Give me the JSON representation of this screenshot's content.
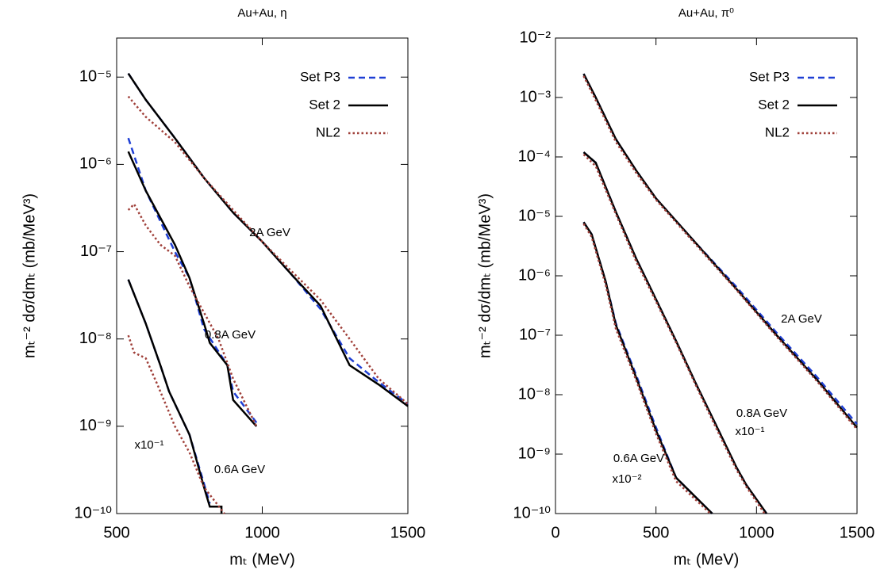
{
  "chart_data": [
    {
      "type": "line",
      "title": "Au+Au, η",
      "xlabel": "mₜ (MeV)",
      "ylabel": "mₜ⁻² dσ/dmₜ (mb/MeV³)",
      "log_y": true,
      "legend": "upper right",
      "xlim": [
        500,
        1500
      ],
      "xticks": [
        500,
        1000,
        1500
      ],
      "ylim": [
        1e-10,
        2.8e-05
      ],
      "yticks": [
        {
          "value": 1e-10,
          "label": "10⁻¹⁰"
        },
        {
          "value": 1e-09,
          "label": "10⁻⁹"
        },
        {
          "value": 1e-08,
          "label": "10⁻⁸"
        },
        {
          "value": 1e-07,
          "label": "10⁻⁷"
        },
        {
          "value": 1e-06,
          "label": "10⁻⁶"
        },
        {
          "value": 1e-05,
          "label": "10⁻⁵"
        }
      ],
      "annotations": [
        "2A GeV",
        "0.8A GeV",
        "x10⁻¹",
        "0.6A GeV"
      ],
      "series": [
        {
          "name": "Set P3",
          "color": "#1f3fd4",
          "style": "dashed",
          "lines": [
            {
              "x": [
                540,
                600,
                700,
                800,
                900,
                1000,
                1100,
                1200,
                1300,
                1400,
                1500
              ],
              "values": [
                1.1e-05,
                5.5e-06,
                2e-06,
                7e-07,
                2.8e-07,
                1.3e-07,
                5.5e-08,
                2.2e-08,
                6e-09,
                3.2e-09,
                1.8e-09
              ]
            },
            {
              "x": [
                540,
                600,
                700,
                750,
                800,
                880,
                900,
                980
              ],
              "values": [
                2e-06,
                5e-07,
                1e-07,
                5e-08,
                1.3e-08,
                5e-09,
                2.5e-09,
                1.1e-09
              ]
            },
            {
              "x": [
                540,
                600,
                650,
                680,
                750,
                800,
                820
              ],
              "values": [
                4.8e-08,
                1.5e-08,
                5e-09,
                2.5e-09,
                8e-10,
                2.2e-10,
                1.3e-10
              ]
            }
          ]
        },
        {
          "name": "Set 2",
          "color": "#000000",
          "style": "solid",
          "lines": [
            {
              "x": [
                540,
                600,
                700,
                800,
                900,
                1000,
                1100,
                1200,
                1300,
                1400,
                1500
              ],
              "values": [
                1.1e-05,
                5.5e-06,
                2e-06,
                7e-07,
                2.8e-07,
                1.3e-07,
                5.5e-08,
                2.4e-08,
                5e-09,
                3e-09,
                1.7e-09
              ]
            },
            {
              "x": [
                540,
                600,
                700,
                750,
                800,
                820,
                880,
                900,
                980
              ],
              "values": [
                1.4e-06,
                5e-07,
                1.2e-07,
                5e-08,
                1.5e-08,
                9e-09,
                5e-09,
                2e-09,
                1e-09
              ]
            },
            {
              "x": [
                540,
                600,
                650,
                680,
                750,
                800,
                820,
                860,
                860
              ],
              "values": [
                4.8e-08,
                1.5e-08,
                5e-09,
                2.5e-09,
                8e-10,
                2e-10,
                1.2e-10,
                1.2e-10,
                1e-10
              ]
            }
          ]
        },
        {
          "name": "NL2",
          "color": "#a0403a",
          "style": "dotted",
          "lines": [
            {
              "x": [
                540,
                600,
                700,
                800,
                900,
                1000,
                1100,
                1200,
                1300,
                1400,
                1500
              ],
              "values": [
                6e-06,
                3.5e-06,
                1.8e-06,
                7e-07,
                3e-07,
                1.3e-07,
                6e-08,
                2.8e-08,
                1e-08,
                3.5e-09,
                1.8e-09
              ]
            },
            {
              "x": [
                540,
                560,
                600,
                650,
                700,
                750,
                800,
                850,
                900,
                980
              ],
              "values": [
                3e-07,
                3.5e-07,
                2e-07,
                1.2e-07,
                9e-08,
                4e-08,
                2e-08,
                1e-08,
                3.5e-09,
                1e-09
              ]
            },
            {
              "x": [
                540,
                560,
                600,
                640,
                700,
                750,
                800,
                870
              ],
              "values": [
                1.1e-08,
                7e-09,
                6e-09,
                3e-09,
                1e-09,
                5e-10,
                2e-10,
                1e-10
              ]
            }
          ]
        }
      ]
    },
    {
      "type": "line",
      "title": "Au+Au, π⁰",
      "xlabel": "mₜ (MeV)",
      "ylabel": "mₜ⁻² dσ/dmₜ (mb/MeV³)",
      "log_y": true,
      "legend": "upper right",
      "xlim": [
        0,
        1500
      ],
      "xticks": [
        0,
        500,
        1000,
        1500
      ],
      "ylim": [
        1e-10,
        0.01
      ],
      "yticks": [
        {
          "value": 1e-10,
          "label": "10⁻¹⁰"
        },
        {
          "value": 1e-09,
          "label": "10⁻⁹"
        },
        {
          "value": 1e-08,
          "label": "10⁻⁸"
        },
        {
          "value": 1e-07,
          "label": "10⁻⁷"
        },
        {
          "value": 1e-06,
          "label": "10⁻⁶"
        },
        {
          "value": 1e-05,
          "label": "10⁻⁵"
        },
        {
          "value": 0.0001,
          "label": "10⁻⁴"
        },
        {
          "value": 0.001,
          "label": "10⁻³"
        },
        {
          "value": 0.01,
          "label": "10⁻²"
        }
      ],
      "annotations": [
        "2A GeV",
        "0.8A GeV",
        "x10⁻¹",
        "0.6A GeV",
        "x10⁻²"
      ],
      "series": [
        {
          "name": "Set P3",
          "color": "#1f3fd4",
          "style": "dashed",
          "lines": [
            {
              "x": [
                140,
                200,
                300,
                400,
                500,
                700,
                900,
                1100,
                1300,
                1500
              ],
              "values": [
                0.0025,
                0.001,
                0.0002,
                6e-05,
                2e-05,
                3.5e-06,
                6.5e-07,
                1.1e-07,
                2e-08,
                3.2e-09
              ]
            },
            {
              "x": [
                140,
                200,
                300,
                400,
                500,
                600,
                700,
                800,
                900,
                950,
                1050
              ],
              "values": [
                0.00012,
                8e-05,
                1.2e-05,
                2e-06,
                4e-07,
                8e-08,
                1.5e-08,
                3e-09,
                6e-10,
                3e-10,
                1e-10
              ]
            },
            {
              "x": [
                140,
                180,
                250,
                300,
                400,
                500,
                600,
                780
              ],
              "values": [
                8e-06,
                5e-06,
                8e-07,
                1.6e-07,
                2.2e-08,
                2.8e-09,
                4e-10,
                1e-10
              ]
            }
          ]
        },
        {
          "name": "Set 2",
          "color": "#000000",
          "style": "solid",
          "lines": [
            {
              "x": [
                140,
                200,
                300,
                400,
                500,
                700,
                900,
                1100,
                1300,
                1500
              ],
              "values": [
                0.0025,
                0.001,
                0.0002,
                6e-05,
                2e-05,
                3.5e-06,
                6e-07,
                1e-07,
                1.8e-08,
                2.8e-09
              ]
            },
            {
              "x": [
                140,
                200,
                300,
                400,
                500,
                600,
                700,
                800,
                900,
                950,
                1050
              ],
              "values": [
                0.00012,
                8e-05,
                1.2e-05,
                2e-06,
                4e-07,
                8e-08,
                1.5e-08,
                3e-09,
                6e-10,
                3e-10,
                1e-10
              ]
            },
            {
              "x": [
                140,
                180,
                250,
                300,
                400,
                500,
                600,
                780
              ],
              "values": [
                8e-06,
                5e-06,
                8e-07,
                1.5e-07,
                2e-08,
                2.5e-09,
                4e-10,
                1e-10
              ]
            }
          ]
        },
        {
          "name": "NL2",
          "color": "#a0403a",
          "style": "dotted",
          "lines": [
            {
              "x": [
                140,
                200,
                300,
                400,
                500,
                700,
                900,
                1100,
                1300,
                1500
              ],
              "values": [
                0.0023,
                0.0009,
                0.00018,
                5.5e-05,
                1.9e-05,
                3.3e-06,
                5.8e-07,
                9.5e-08,
                1.7e-08,
                2.6e-09
              ]
            },
            {
              "x": [
                140,
                200,
                300,
                400,
                500,
                600,
                700,
                800,
                900,
                950,
                1040
              ],
              "values": [
                0.00011,
                7e-05,
                1.1e-05,
                1.8e-06,
                3.7e-07,
                7.5e-08,
                1.4e-08,
                2.7e-09,
                5.5e-10,
                2.8e-10,
                1e-10
              ]
            },
            {
              "x": [
                140,
                180,
                250,
                300,
                400,
                500,
                600,
                770
              ],
              "values": [
                7.5e-06,
                4.5e-06,
                7e-07,
                1.3e-07,
                1.8e-08,
                2.2e-09,
                3.5e-10,
                1e-10
              ]
            }
          ]
        }
      ]
    }
  ]
}
